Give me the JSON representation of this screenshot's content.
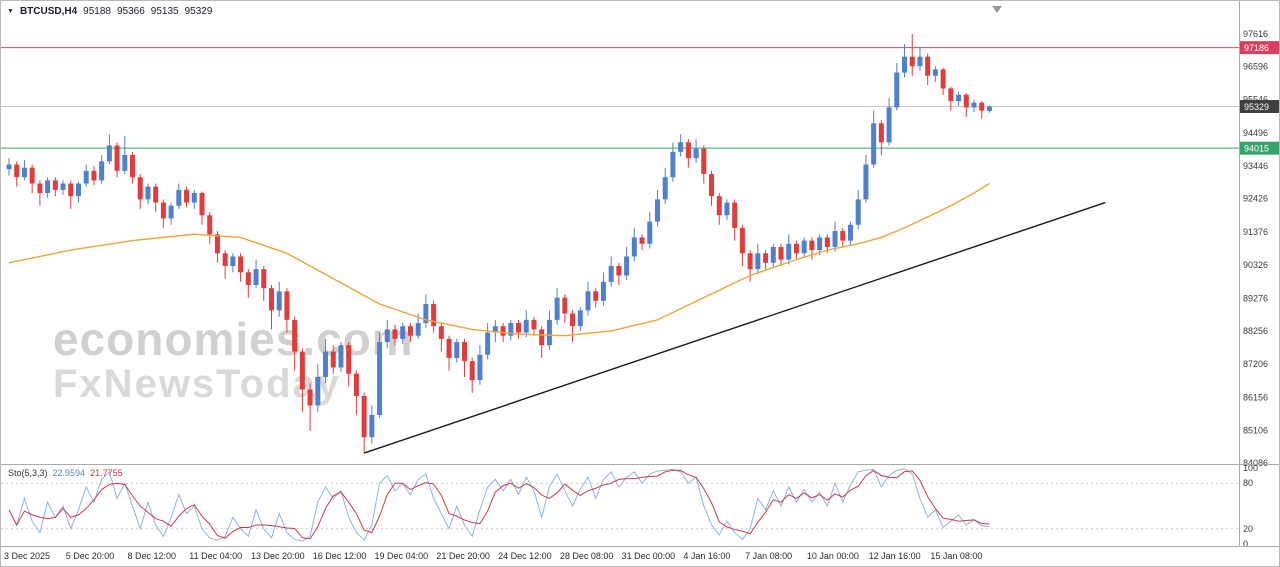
{
  "header": {
    "symbol": "BTCUSD,H4",
    "open": "95188",
    "high": "95366",
    "low": "95135",
    "close": "95329"
  },
  "watermark": {
    "line1": "economies.com",
    "line2": "FxNewsToday"
  },
  "colors": {
    "up_candle": "#4f7fd0",
    "down_candle": "#e23b3b",
    "ma_line": "#efa43a",
    "trendline": "#1a1a1a",
    "resistance_line": "#c05068",
    "support_line": "#3aa76d",
    "current_price_line": "#c4c4c4",
    "sto_k": "#8fb4dc",
    "sto_d": "#cc3b4e",
    "axis_text": "#3a3a3a",
    "separator": "#ababab"
  },
  "chart_data": {
    "type": "candlestick",
    "title": "BTCUSD H4 with MA, trendline and Stochastic(5,3,3)",
    "ylim": [
      84086,
      97616
    ],
    "price_axis_ticks": [
      "97616",
      "96596",
      "95546",
      "94496",
      "93446",
      "92426",
      "91376",
      "90326",
      "89276",
      "88256",
      "87206",
      "86156",
      "85106",
      "84086"
    ],
    "x_labels": [
      "3 Dec 2025",
      "5 Dec 20:00",
      "8 Dec 12:00",
      "11 Dec 04:00",
      "13 Dec 20:00",
      "16 Dec 12:00",
      "19 Dec 04:00",
      "21 Dec 20:00",
      "24 Dec 12:00",
      "28 Dec 08:00",
      "31 Dec 00:00",
      "4 Jan 16:00",
      "7 Jan 08:00",
      "10 Jan 00:00",
      "12 Jan 16:00",
      "15 Jan 08:00"
    ],
    "candles_per_label": 8,
    "hlines": [
      {
        "price": 97186,
        "badge": "97186",
        "line_color": "#c05068",
        "badge_color": "#d6405c"
      },
      {
        "price": 95329,
        "badge": "95329",
        "line_color": "#c4c4c4",
        "badge_color": "#3f3f3f"
      },
      {
        "price": 94015,
        "badge": "94015",
        "line_color": "#3aa76d",
        "badge_color": "#35a36b"
      }
    ],
    "trendline": {
      "from_index": 46,
      "from_price": 84400,
      "to_index": 142,
      "to_price": 92300
    },
    "ma_points": [
      [
        0,
        90400
      ],
      [
        8,
        90800
      ],
      [
        16,
        91100
      ],
      [
        24,
        91300
      ],
      [
        30,
        91200
      ],
      [
        36,
        90700
      ],
      [
        42,
        89900
      ],
      [
        48,
        89100
      ],
      [
        54,
        88600
      ],
      [
        60,
        88300
      ],
      [
        66,
        88150
      ],
      [
        72,
        88100
      ],
      [
        78,
        88250
      ],
      [
        84,
        88600
      ],
      [
        90,
        89300
      ],
      [
        96,
        90000
      ],
      [
        102,
        90500
      ],
      [
        106,
        90800
      ],
      [
        110,
        91000
      ],
      [
        113,
        91200
      ],
      [
        116,
        91500
      ],
      [
        119,
        91850
      ],
      [
        122,
        92200
      ],
      [
        125,
        92600
      ],
      [
        127,
        92900
      ]
    ],
    "candles": [
      [
        93350,
        93700,
        93150,
        93500
      ],
      [
        93500,
        93600,
        92800,
        93100
      ],
      [
        93100,
        93650,
        93000,
        93400
      ],
      [
        93400,
        93500,
        92600,
        92900
      ],
      [
        92900,
        93000,
        92200,
        92600
      ],
      [
        92600,
        93100,
        92450,
        93000
      ],
      [
        93000,
        93100,
        92500,
        92700
      ],
      [
        92700,
        93000,
        92550,
        92900
      ],
      [
        92900,
        93000,
        92100,
        92500
      ],
      [
        92500,
        92950,
        92300,
        92900
      ],
      [
        92900,
        93500,
        92800,
        93300
      ],
      [
        93300,
        93450,
        92850,
        93000
      ],
      [
        93000,
        93800,
        92900,
        93600
      ],
      [
        93600,
        94450,
        93500,
        94100
      ],
      [
        94100,
        94200,
        93100,
        93300
      ],
      [
        93300,
        94400,
        93200,
        93800
      ],
      [
        93800,
        93900,
        92900,
        93100
      ],
      [
        93100,
        93200,
        92100,
        92400
      ],
      [
        92400,
        92900,
        92250,
        92800
      ],
      [
        92800,
        92900,
        92000,
        92300
      ],
      [
        92300,
        92400,
        91500,
        91800
      ],
      [
        91800,
        92300,
        91600,
        92200
      ],
      [
        92200,
        92900,
        92100,
        92700
      ],
      [
        92700,
        92800,
        92150,
        92300
      ],
      [
        92300,
        92700,
        92100,
        92600
      ],
      [
        92600,
        92650,
        91600,
        91900
      ],
      [
        91900,
        92000,
        91000,
        91300
      ],
      [
        91300,
        91400,
        90400,
        90700
      ],
      [
        90700,
        90800,
        89900,
        90300
      ],
      [
        90300,
        90700,
        90100,
        90600
      ],
      [
        90600,
        90700,
        89800,
        90100
      ],
      [
        90100,
        90200,
        89300,
        89700
      ],
      [
        89700,
        90500,
        89600,
        90200
      ],
      [
        90200,
        90300,
        89200,
        89600
      ],
      [
        89600,
        89700,
        88300,
        88900
      ],
      [
        88900,
        89800,
        88700,
        89500
      ],
      [
        89500,
        89600,
        88200,
        88600
      ],
      [
        88600,
        88700,
        87000,
        87600
      ],
      [
        87600,
        87700,
        85700,
        86400
      ],
      [
        86400,
        86600,
        85100,
        85900
      ],
      [
        85900,
        87200,
        85700,
        86800
      ],
      [
        86800,
        88000,
        86600,
        87600
      ],
      [
        87600,
        87800,
        86900,
        87100
      ],
      [
        87100,
        87900,
        86950,
        87800
      ],
      [
        87800,
        87900,
        86500,
        86900
      ],
      [
        86900,
        87000,
        85600,
        86200
      ],
      [
        86200,
        86300,
        84400,
        84900
      ],
      [
        84900,
        85900,
        84700,
        85600
      ],
      [
        85600,
        88200,
        85500,
        87900
      ],
      [
        87900,
        88600,
        87700,
        88300
      ],
      [
        88300,
        88450,
        87800,
        88000
      ],
      [
        88000,
        88500,
        87850,
        88400
      ],
      [
        88400,
        88500,
        87900,
        88100
      ],
      [
        88100,
        88800,
        88000,
        88500
      ],
      [
        88500,
        89400,
        88350,
        89100
      ],
      [
        89100,
        89200,
        88200,
        88400
      ],
      [
        88400,
        88500,
        87600,
        88000
      ],
      [
        88000,
        88100,
        87000,
        87400
      ],
      [
        87400,
        88000,
        87250,
        87900
      ],
      [
        87900,
        88000,
        86800,
        87300
      ],
      [
        87300,
        87400,
        86300,
        86700
      ],
      [
        86700,
        87800,
        86550,
        87500
      ],
      [
        87500,
        88500,
        87350,
        88200
      ],
      [
        88200,
        88600,
        87900,
        88400
      ],
      [
        88400,
        88500,
        87900,
        88100
      ],
      [
        88100,
        88600,
        87950,
        88500
      ],
      [
        88500,
        88600,
        88000,
        88200
      ],
      [
        88200,
        88900,
        88050,
        88600
      ],
      [
        88600,
        88700,
        88100,
        88300
      ],
      [
        88300,
        88400,
        87400,
        87800
      ],
      [
        87800,
        88900,
        87650,
        88600
      ],
      [
        88600,
        89600,
        88450,
        89300
      ],
      [
        89300,
        89400,
        88500,
        88800
      ],
      [
        88800,
        88900,
        87900,
        88400
      ],
      [
        88400,
        89000,
        88250,
        88900
      ],
      [
        88900,
        89800,
        88750,
        89500
      ],
      [
        89500,
        89600,
        89000,
        89200
      ],
      [
        89200,
        90100,
        89050,
        89800
      ],
      [
        89800,
        90600,
        89650,
        90300
      ],
      [
        90300,
        90400,
        89700,
        90000
      ],
      [
        90000,
        90900,
        89850,
        90600
      ],
      [
        90600,
        91500,
        90450,
        91200
      ],
      [
        91200,
        91300,
        90800,
        91000
      ],
      [
        91000,
        92000,
        90850,
        91700
      ],
      [
        91700,
        92700,
        91550,
        92400
      ],
      [
        92400,
        93400,
        92250,
        93100
      ],
      [
        93100,
        94200,
        92950,
        93900
      ],
      [
        93900,
        94450,
        93750,
        94200
      ],
      [
        94200,
        94300,
        93400,
        93700
      ],
      [
        93700,
        94300,
        93550,
        94000
      ],
      [
        94000,
        94100,
        92900,
        93200
      ],
      [
        93200,
        93300,
        92200,
        92500
      ],
      [
        92500,
        92600,
        91600,
        91900
      ],
      [
        91900,
        92400,
        91750,
        92300
      ],
      [
        92300,
        92400,
        91100,
        91500
      ],
      [
        91500,
        91600,
        90300,
        90700
      ],
      [
        90700,
        90800,
        89800,
        90200
      ],
      [
        90200,
        91000,
        90050,
        90700
      ],
      [
        90700,
        90800,
        90200,
        90400
      ],
      [
        90400,
        91000,
        90250,
        90900
      ],
      [
        90900,
        91000,
        90300,
        90500
      ],
      [
        90500,
        91300,
        90350,
        91000
      ],
      [
        91000,
        91100,
        90500,
        90700
      ],
      [
        90700,
        91200,
        90550,
        91100
      ],
      [
        91100,
        91200,
        90500,
        90800
      ],
      [
        90800,
        91300,
        90650,
        91200
      ],
      [
        91200,
        91300,
        90700,
        90900
      ],
      [
        90900,
        91700,
        90750,
        91400
      ],
      [
        91400,
        91500,
        90900,
        91100
      ],
      [
        91100,
        91700,
        90950,
        91600
      ],
      [
        91600,
        92700,
        91450,
        92400
      ],
      [
        92400,
        93800,
        92300,
        93500
      ],
      [
        93500,
        95200,
        93400,
        94800
      ],
      [
        94800,
        94900,
        93800,
        94200
      ],
      [
        94200,
        95600,
        94100,
        95300
      ],
      [
        95300,
        96700,
        95200,
        96400
      ],
      [
        96400,
        97300,
        96250,
        96900
      ],
      [
        96900,
        97616,
        96300,
        96600
      ],
      [
        96600,
        97200,
        96450,
        96900
      ],
      [
        96900,
        97000,
        96000,
        96300
      ],
      [
        96300,
        96600,
        96100,
        96500
      ],
      [
        96500,
        96550,
        95700,
        95900
      ],
      [
        95900,
        95950,
        95200,
        95500
      ],
      [
        95500,
        95800,
        95350,
        95700
      ],
      [
        95700,
        95750,
        95000,
        95300
      ],
      [
        95300,
        95550,
        95150,
        95450
      ],
      [
        95450,
        95500,
        94950,
        95200
      ],
      [
        95188,
        95366,
        95135,
        95329
      ]
    ],
    "stochastic": {
      "label": "Sto(5,3,3)",
      "k_value": "22.9594",
      "d_value": "21.7755",
      "axis_ticks": [
        "100",
        "80",
        "20",
        "0"
      ],
      "level_lines": [
        80,
        20
      ],
      "k": [
        45,
        25,
        60,
        30,
        15,
        55,
        35,
        50,
        20,
        45,
        75,
        55,
        85,
        95,
        60,
        80,
        50,
        20,
        55,
        25,
        10,
        35,
        65,
        40,
        50,
        20,
        8,
        5,
        10,
        35,
        20,
        10,
        45,
        20,
        8,
        40,
        15,
        6,
        4,
        10,
        55,
        75,
        60,
        70,
        35,
        15,
        5,
        25,
        80,
        90,
        70,
        80,
        65,
        85,
        92,
        60,
        40,
        20,
        50,
        25,
        10,
        45,
        75,
        85,
        70,
        85,
        65,
        88,
        70,
        35,
        75,
        92,
        70,
        50,
        72,
        88,
        60,
        85,
        95,
        75,
        88,
        95,
        80,
        92,
        96,
        97,
        98,
        95,
        80,
        88,
        50,
        25,
        12,
        30,
        15,
        6,
        20,
        60,
        45,
        70,
        50,
        75,
        55,
        72,
        55,
        68,
        50,
        80,
        55,
        78,
        95,
        97,
        98,
        75,
        90,
        97,
        99,
        92,
        60,
        35,
        45,
        22,
        30,
        38,
        25,
        32,
        24,
        23
      ]
    }
  }
}
